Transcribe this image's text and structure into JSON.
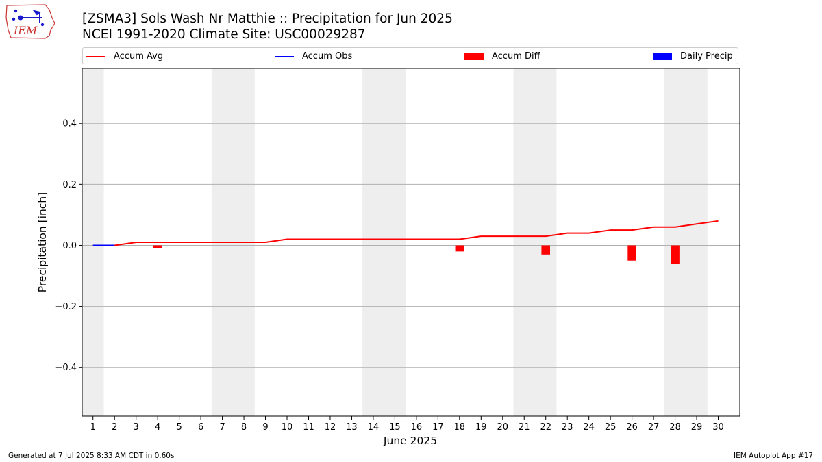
{
  "header": {
    "title_line1": "[ZSMA3] Sols Wash Nr Matthie :: Precipitation for Jun 2025",
    "title_line2": "NCEI 1991-2020 Climate Site: USC00029287",
    "logo_text": "IEM",
    "logo_icon": "iowa-weather-station-icon"
  },
  "legend": {
    "items": [
      {
        "label": "Accum Avg",
        "kind": "line",
        "color": "#ff0000"
      },
      {
        "label": "Accum Obs",
        "kind": "line",
        "color": "#0000ff"
      },
      {
        "label": "Accum Diff",
        "kind": "box",
        "color": "#ff0000"
      },
      {
        "label": "Daily Precip",
        "kind": "box",
        "color": "#0000ff"
      }
    ]
  },
  "footer": {
    "left": "Generated at 7 Jul 2025 8:33 AM CDT in 0.60s",
    "right": "IEM Autoplot App #17"
  },
  "chart_data": {
    "type": "line",
    "xlabel": "June 2025",
    "ylabel": "Precipitation [inch]",
    "xlim": [
      0.5,
      31.0
    ],
    "ylim": [
      -0.56,
      0.58
    ],
    "x": [
      1,
      2,
      3,
      4,
      5,
      6,
      7,
      8,
      9,
      10,
      11,
      12,
      13,
      14,
      15,
      16,
      17,
      18,
      19,
      20,
      21,
      22,
      23,
      24,
      25,
      26,
      27,
      28,
      29,
      30
    ],
    "yticks": [
      -0.4,
      -0.2,
      0.0,
      0.2,
      0.4
    ],
    "ytick_labels": [
      "−0.4",
      "−0.2",
      "0.0",
      "0.2",
      "0.4"
    ],
    "grid": "y",
    "weekend_shading": [
      [
        0.5,
        1.5
      ],
      [
        6.5,
        8.5
      ],
      [
        13.5,
        15.5
      ],
      [
        20.5,
        22.5
      ],
      [
        27.5,
        29.5
      ]
    ],
    "weekend_color": "#eeeeee",
    "accum_avg": {
      "name": "Accum Avg",
      "color": "#ff0000",
      "values": [
        0,
        0,
        0.01,
        0.01,
        0.01,
        0.01,
        0.01,
        0.01,
        0.01,
        0.02,
        0.02,
        0.02,
        0.02,
        0.02,
        0.02,
        0.02,
        0.02,
        0.02,
        0.03,
        0.03,
        0.03,
        0.03,
        0.04,
        0.04,
        0.05,
        0.05,
        0.06,
        0.06,
        0.07,
        0.08
      ]
    },
    "accum_obs": {
      "name": "Accum Obs",
      "color": "#0000ff",
      "x": [
        1,
        2
      ],
      "values": [
        0,
        0
      ]
    },
    "accum_diff": {
      "name": "Accum Diff",
      "color": "#ff0000",
      "x": [
        4,
        18,
        22,
        26,
        28
      ],
      "values": [
        -0.01,
        -0.02,
        -0.03,
        -0.05,
        -0.06
      ]
    },
    "daily_precip": {
      "name": "Daily Precip",
      "color": "#0000ff",
      "x": [],
      "values": []
    }
  }
}
